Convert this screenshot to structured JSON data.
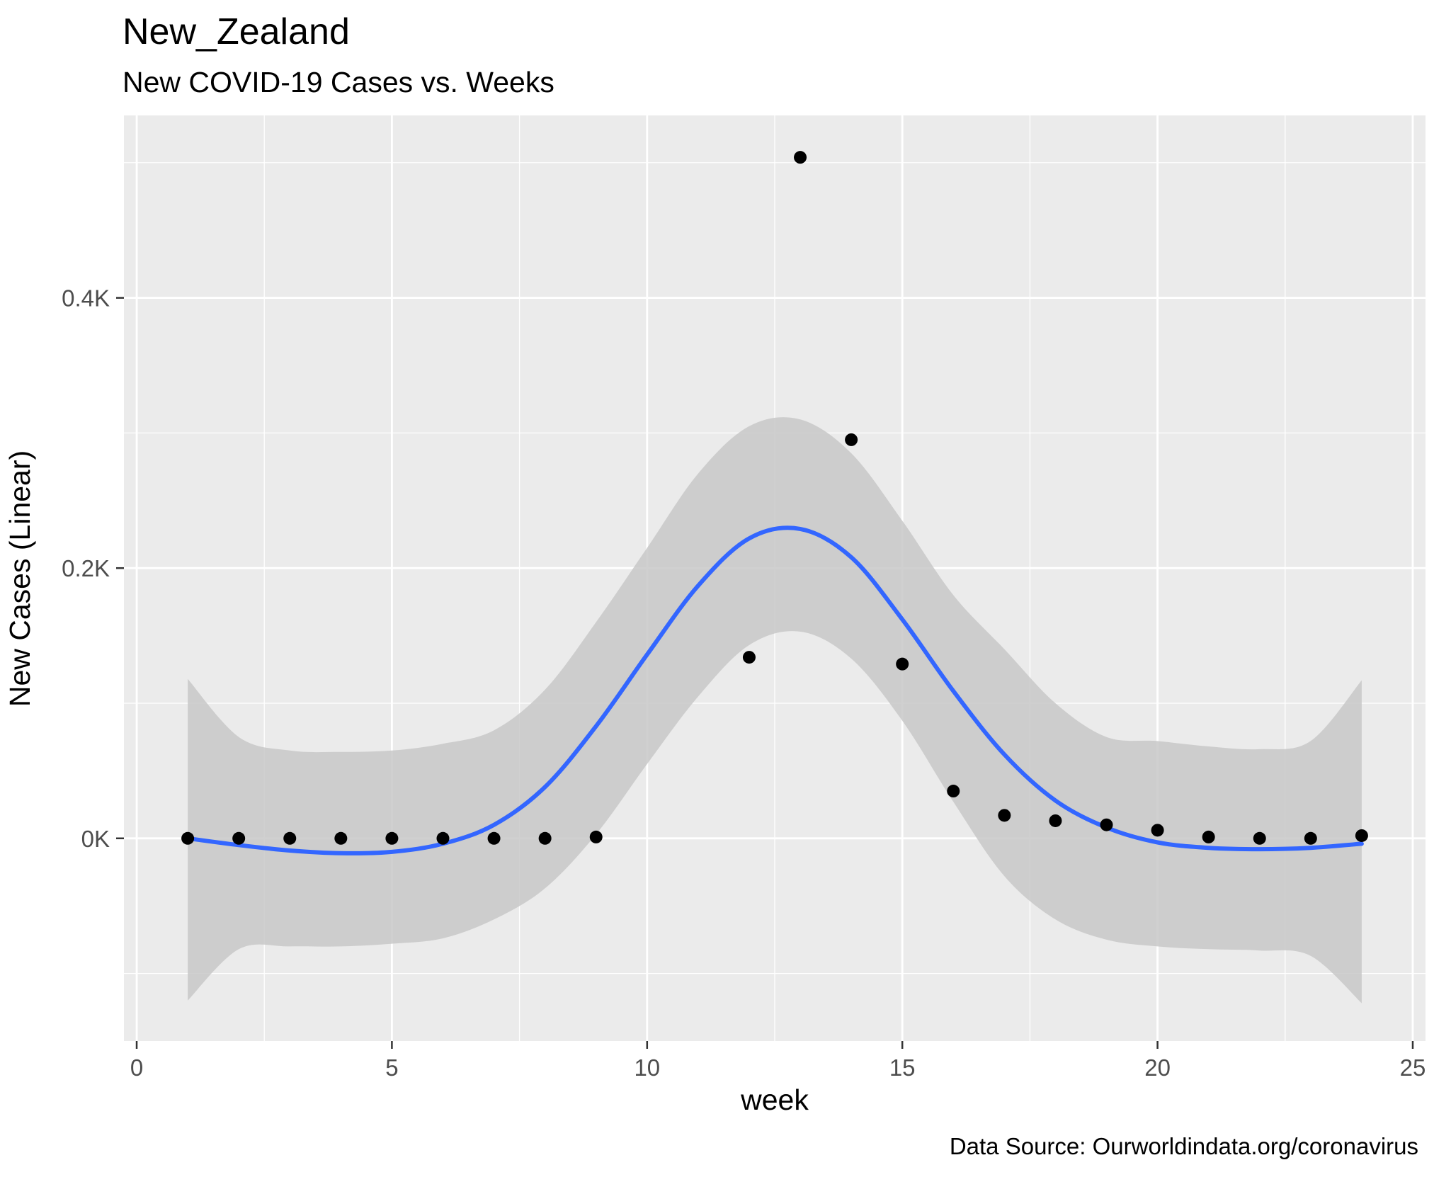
{
  "chart_data": {
    "type": "scatter",
    "title": "New_Zealand",
    "subtitle": "New COVID-19 Cases vs. Weeks",
    "xlabel": "week",
    "ylabel": "New Cases (Linear)",
    "caption": "Data Source: Ourworldindata.org/coronavirus",
    "xlim": [
      -0.25,
      25.25
    ],
    "ylim": [
      -150,
      535
    ],
    "x_ticks": [
      0,
      5,
      10,
      15,
      20,
      25
    ],
    "x_tick_labels": [
      "0",
      "5",
      "10",
      "15",
      "20",
      "25"
    ],
    "y_ticks": [
      0,
      200,
      400
    ],
    "y_tick_labels": [
      "0K",
      "0.2K",
      "0.4K"
    ],
    "grid": true,
    "colors": {
      "panel_background": "#ebebeb",
      "grid": "#ffffff",
      "points": "#000000",
      "smooth_line": "#3366ff",
      "confidence_band": "#c8c8c8"
    },
    "points": {
      "x": [
        1,
        2,
        3,
        4,
        5,
        6,
        7,
        8,
        9,
        12,
        13,
        14,
        15,
        16,
        17,
        18,
        19,
        20,
        21,
        22,
        23,
        24
      ],
      "y": [
        0,
        0,
        0,
        0,
        0,
        0,
        0,
        0,
        1,
        134,
        504,
        295,
        129,
        35,
        17,
        13,
        10,
        6,
        1,
        0,
        0,
        2
      ]
    },
    "smooth": {
      "method": "loess",
      "x": [
        1,
        2,
        3,
        4,
        5,
        6,
        7,
        8,
        9,
        10,
        11,
        12,
        13,
        14,
        15,
        16,
        17,
        18,
        19,
        20,
        21,
        22,
        23,
        24
      ],
      "y": [
        0,
        -5,
        -9,
        -11,
        -10,
        -4,
        10,
        38,
        83,
        136,
        187,
        222,
        229,
        208,
        162,
        109,
        62,
        28,
        8,
        -3,
        -7,
        -8,
        -7,
        -4
      ],
      "lower": [
        -120,
        -82,
        -80,
        -80,
        -78,
        -74,
        -60,
        -37,
        3,
        55,
        105,
        143,
        153,
        133,
        87,
        27,
        -28,
        -60,
        -75,
        -80,
        -82,
        -83,
        -87,
        -122
      ],
      "upper": [
        118,
        75,
        65,
        64,
        65,
        70,
        80,
        110,
        160,
        215,
        270,
        305,
        310,
        285,
        235,
        180,
        140,
        100,
        75,
        72,
        68,
        66,
        72,
        117
      ]
    }
  }
}
